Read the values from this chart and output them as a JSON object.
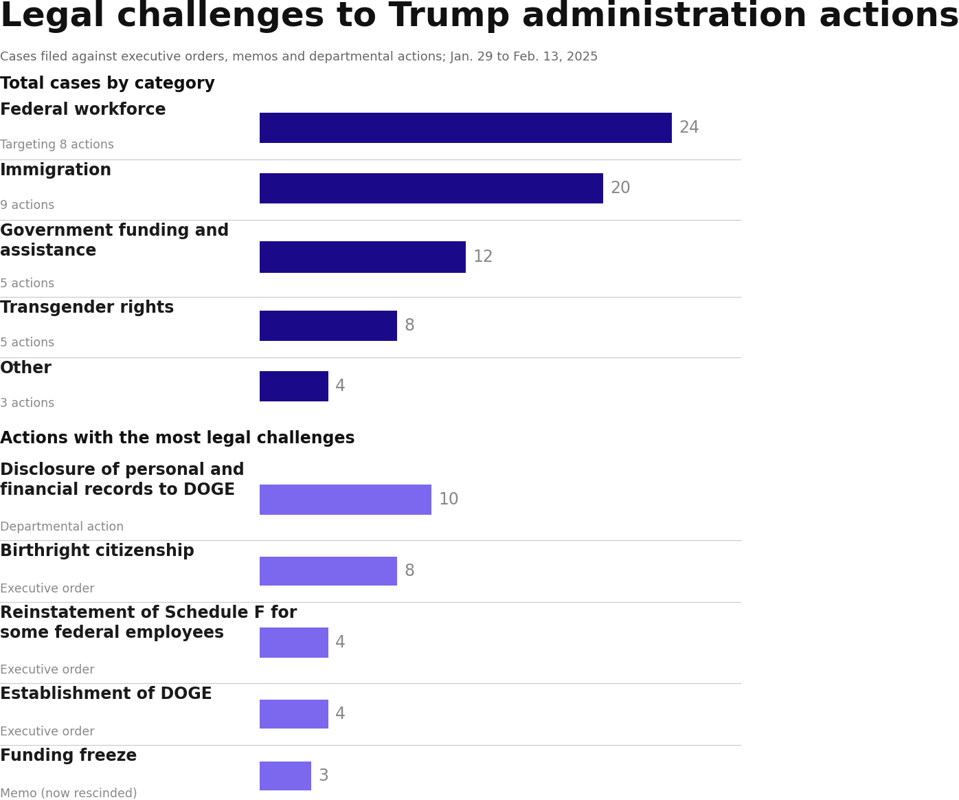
{
  "title": "Legal challenges to Trump administration actions",
  "subtitle": "Cases filed against executive orders, memos and departmental actions; Jan. 29 to Feb. 13, 2025",
  "section1_title": "Total cases by category",
  "section2_title": "Actions with the most legal challenges",
  "background_color": "#ffffff",
  "cat_bars": [
    {
      "label": "Federal workforce",
      "sublabel": "Targeting 8 actions",
      "value": 24
    },
    {
      "label": "Immigration",
      "sublabel": "9 actions",
      "value": 20
    },
    {
      "label": "Government funding and\nassistance",
      "sublabel": "5 actions",
      "value": 12
    },
    {
      "label": "Transgender rights",
      "sublabel": "5 actions",
      "value": 8
    },
    {
      "label": "Other",
      "sublabel": "3 actions",
      "value": 4
    }
  ],
  "cat_bar_color": "#1a0a8a",
  "action_bars": [
    {
      "label": "Disclosure of personal and\nfinancial records to DOGE",
      "sublabel": "Departmental action",
      "value": 10
    },
    {
      "label": "Birthright citizenship",
      "sublabel": "Executive order",
      "value": 8
    },
    {
      "label": "Reinstatement of Schedule F for\nsome federal employees",
      "sublabel": "Executive order",
      "value": 4
    },
    {
      "label": "Establishment of DOGE",
      "sublabel": "Executive order",
      "value": 4
    },
    {
      "label": "Funding freeze",
      "sublabel": "Memo (now rescinded)",
      "value": 3
    }
  ],
  "action_bar_color": "#7b68ee",
  "max_value": 24,
  "label_color": "#1a1a1a",
  "sublabel_color": "#888888",
  "value_color": "#888888",
  "divider_color": "#cccccc",
  "title_color": "#111111",
  "subtitle_color": "#666666",
  "section_title_color": "#111111"
}
